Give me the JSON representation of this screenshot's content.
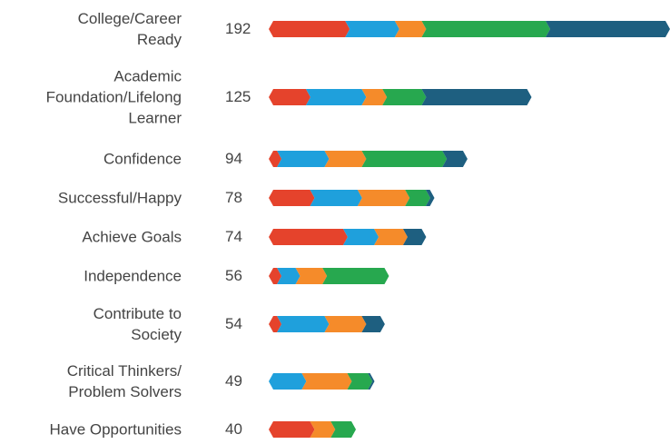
{
  "chart_data": {
    "type": "chevron-stacked-bar",
    "categories": [
      "College/Career\nReady",
      "Academic\nFoundation/Lifelong\nLearner",
      "Confidence",
      "Successful/Happy",
      "Achieve Goals",
      "Independence",
      "Contribute to\nSociety",
      "Critical Thinkers/\nProblem Solvers",
      "Have Opportunities"
    ],
    "totals": [
      192,
      125,
      94,
      78,
      74,
      56,
      54,
      49,
      40
    ],
    "series": [
      {
        "color": "#e5432c",
        "values": [
          37,
          18,
          4,
          20,
          36,
          4,
          4,
          0,
          20
        ]
      },
      {
        "color": "#1fa0dc",
        "values": [
          24,
          27,
          23,
          23,
          15,
          9,
          23,
          16,
          0
        ]
      },
      {
        "color": "#f58b2a",
        "values": [
          13,
          10,
          18,
          23,
          14,
          13,
          18,
          22,
          10
        ]
      },
      {
        "color": "#27a84f",
        "values": [
          60,
          19,
          39,
          10,
          0,
          30,
          0,
          10,
          10
        ]
      },
      {
        "color": "#1e5f80",
        "values": [
          58,
          51,
          10,
          2,
          9,
          0,
          9,
          1,
          0
        ]
      }
    ],
    "xlim": [
      0,
      192
    ]
  }
}
